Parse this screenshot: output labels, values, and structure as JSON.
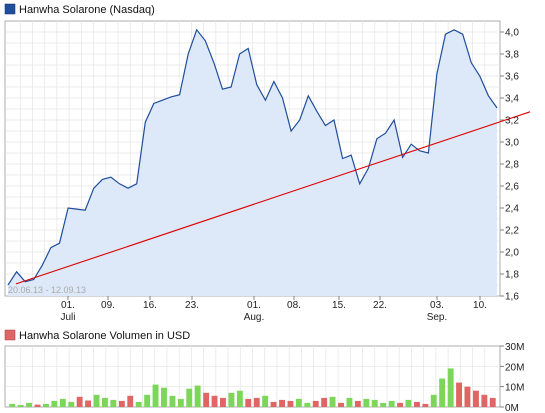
{
  "chart_data": [
    {
      "type": "area",
      "title": "Hanwha Solarone (Nasdaq)",
      "date_range_label": "20.06.13 - 12.09.13",
      "ylim": [
        1.6,
        4.1
      ],
      "y_ticks": [
        "1,6",
        "1,8",
        "2,0",
        "2,2",
        "2,4",
        "2,6",
        "2,8",
        "3,0",
        "3,2",
        "3,4",
        "3,6",
        "3,8",
        "4,0"
      ],
      "x_ticks": [
        "01.",
        "09.",
        "16.",
        "23.",
        "01.",
        "08.",
        "15.",
        "22.",
        "03.",
        "10."
      ],
      "x_tick_sublabels": [
        "Juli",
        "",
        "",
        "",
        "Aug.",
        "",
        "",
        "",
        "Sep.",
        ""
      ],
      "grid": true,
      "line_color": "#1f4e9b",
      "fill_color": "#dde8f8",
      "trendline_color": "#dd0000",
      "trendline": {
        "start": 1.71,
        "end": 3.22
      },
      "values": [
        1.7,
        1.82,
        1.73,
        1.75,
        1.88,
        2.04,
        2.08,
        2.4,
        2.39,
        2.38,
        2.58,
        2.66,
        2.68,
        2.62,
        2.58,
        2.62,
        3.18,
        3.35,
        3.38,
        3.41,
        3.43,
        3.8,
        4.02,
        3.92,
        3.72,
        3.48,
        3.5,
        3.8,
        3.85,
        3.52,
        3.38,
        3.55,
        3.4,
        3.1,
        3.2,
        3.42,
        3.28,
        3.15,
        3.2,
        2.85,
        2.88,
        2.62,
        2.76,
        3.03,
        3.08,
        3.2,
        2.86,
        2.98,
        2.92,
        2.9,
        3.62,
        3.98,
        4.02,
        3.98,
        3.72,
        3.6,
        3.42,
        3.31
      ]
    },
    {
      "type": "bar",
      "title": "Hanwha Solarone Volumen in USD",
      "ylim": [
        0,
        30
      ],
      "y_ticks": [
        "30M",
        "20M",
        "10M",
        "0M"
      ],
      "up_color": "#7cd65a",
      "down_color": "#e06666",
      "values": [
        1.5,
        1.0,
        2.0,
        1.2,
        1.5,
        3.0,
        4.0,
        2.5,
        5.0,
        3.2,
        6.0,
        4.5,
        3.5,
        3.0,
        5.5,
        2.5,
        6.0,
        11.0,
        9.5,
        5.5,
        4.0,
        9.0,
        10.5,
        7.0,
        5.5,
        4.5,
        7.0,
        8.0,
        4.0,
        4.5,
        5.5,
        2.5,
        3.5,
        3.0,
        4.0,
        2.0,
        3.0,
        4.5,
        5.0,
        2.0,
        4.5,
        3.0,
        4.0,
        3.5,
        2.0,
        3.0,
        2.0,
        3.5,
        2.5,
        1.5,
        6.0,
        14.0,
        19.0,
        12.0,
        10.0,
        8.0,
        6.0,
        4.5
      ],
      "up": [
        true,
        true,
        true,
        false,
        true,
        true,
        true,
        true,
        false,
        false,
        true,
        true,
        true,
        false,
        false,
        true,
        true,
        true,
        true,
        true,
        true,
        true,
        true,
        false,
        false,
        false,
        true,
        true,
        false,
        false,
        true,
        false,
        false,
        false,
        true,
        true,
        false,
        false,
        true,
        false,
        true,
        false,
        true,
        true,
        true,
        true,
        false,
        true,
        false,
        false,
        true,
        true,
        true,
        false,
        false,
        false,
        false,
        false
      ]
    }
  ]
}
